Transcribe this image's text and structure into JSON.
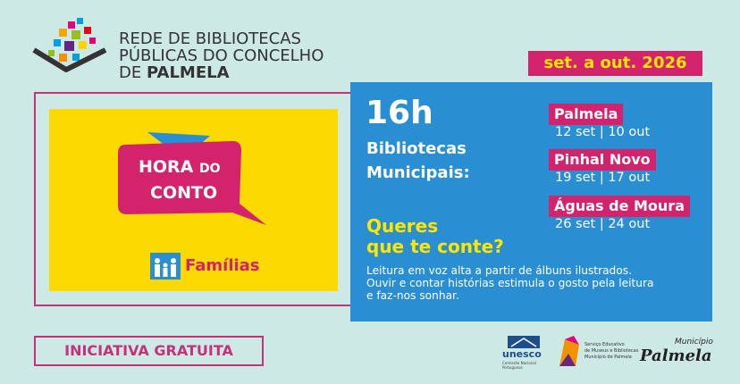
{
  "header": {
    "lines": [
      "REDE DE BIBLIOTECAS",
      "PÚBLICAS DO CONCELHO"
    ],
    "line3_prefix": "DE",
    "line3_bold": "PALMELA"
  },
  "date_badge": "set. a out. 2026",
  "event": {
    "title_parts": [
      "HORA",
      "DO",
      "CONTO"
    ],
    "audience": "Famílias"
  },
  "panel": {
    "time": "16h",
    "venue_lines": [
      "Bibliotecas",
      "Municipais:"
    ],
    "question_lines": [
      "Queres",
      "que te conte?"
    ],
    "description": [
      "Leitura em voz alta a partir de álbuns ilustrados.",
      "Ouvir e contar histórias estimula o gosto pela leitura",
      "e faz-nos sonhar."
    ]
  },
  "locations": [
    {
      "name": "Palmela",
      "dates": "12 set | 10 out"
    },
    {
      "name": "Pinhal Novo",
      "dates": "19 set | 17 out"
    },
    {
      "name": "Águas de Moura",
      "dates": "26 set | 24 out"
    }
  ],
  "footer": {
    "label": "INICIATIVA GRATUITA",
    "logos": {
      "unesco": "unesco",
      "unesco_sub": [
        "Comissão Nacional",
        "Portuguesa"
      ],
      "service": [
        "Serviço Educativo",
        "de Museus e Bibliotecas",
        "Município de Palmela"
      ],
      "municipio": "Município",
      "municipio_name": "Palmela"
    }
  }
}
